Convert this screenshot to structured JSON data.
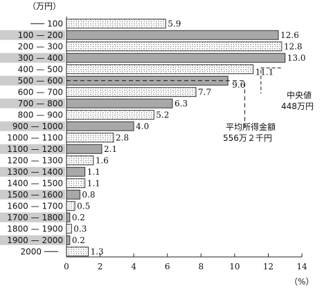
{
  "chart_data": {
    "type": "bar",
    "orientation": "horizontal",
    "y_unit_label": "（万円）",
    "x_unit_label": "（%）",
    "categories": [
      "100",
      "100 — 200",
      "200 — 300",
      "300 — 400",
      "400 — 500",
      "500 — 600",
      "600 — 700",
      "700 — 800",
      "800 — 900",
      "900 — 1000",
      "1000 — 1100",
      "1100 — 1200",
      "1200 — 1300",
      "1300 — 1400",
      "1400 — 1500",
      "1500 — 1600",
      "1600 — 1700",
      "1700 — 1800",
      "1800 — 1900",
      "1900 — 2000",
      "2000"
    ],
    "category_dashes": [
      "before",
      "",
      "",
      "",
      "",
      "",
      "",
      "",
      "",
      "",
      "",
      "",
      "",
      "",
      "",
      "",
      "",
      "",
      "",
      "",
      "after"
    ],
    "values": [
      5.9,
      12.6,
      12.8,
      13.0,
      11.1,
      9.6,
      7.7,
      6.3,
      5.2,
      4.0,
      2.8,
      2.1,
      1.6,
      1.1,
      1.1,
      0.8,
      0.5,
      0.2,
      0.3,
      0.2,
      1.3
    ],
    "value_labels": [
      "5.9",
      "12.6",
      "12.8",
      "13.0",
      "11.1",
      "9.6",
      "7.7",
      "6.3",
      "5.2",
      "4.0",
      "2.8",
      "2.1",
      "1.6",
      "1.1",
      "1.1",
      "0.8",
      "0.5",
      "0.2",
      "0.3",
      "0.2",
      "1.3"
    ],
    "bar_styles": [
      "hatched",
      "solid",
      "hatched",
      "solid",
      "hatched",
      "solid",
      "hatched",
      "solid",
      "hatched",
      "solid",
      "hatched",
      "solid",
      "hatched",
      "solid",
      "hatched",
      "solid",
      "hatched",
      "solid",
      "hatched",
      "solid",
      "hatched"
    ],
    "highlighted_rows": [
      1,
      3,
      5,
      7,
      9,
      11,
      13,
      15,
      17,
      19
    ],
    "xlim": [
      0,
      14
    ],
    "xticks": [
      0,
      2,
      4,
      6,
      8,
      10,
      12,
      14
    ],
    "grid": false,
    "annotations": [
      {
        "label": "中央値",
        "value": "448万円",
        "x": 11.4,
        "row": 4
      },
      {
        "label": "平均所得金額",
        "value": "556万２千円",
        "x": 10.6,
        "row": 5
      }
    ],
    "colors": {
      "solid_fill": "#a8a8a8",
      "hatch_fill": "#ffffff",
      "hatch_dots": "#555555",
      "row_highlight": "#cccccc",
      "axis": "#222222"
    }
  }
}
